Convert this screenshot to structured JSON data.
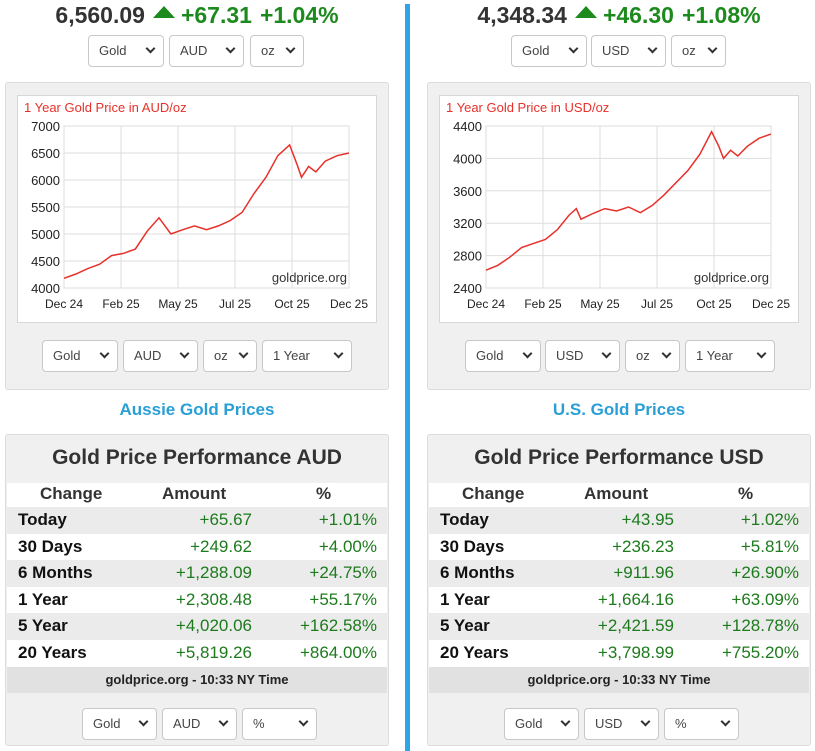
{
  "colors": {
    "up": "#1d8a1d",
    "accent": "#2fa4e7",
    "line": "#e8302a"
  },
  "panels": [
    {
      "id": "aud",
      "price": "6,560.09",
      "change": "+67.31",
      "change_pct": "+1.04%",
      "top_selects": {
        "metal": "Gold",
        "currency": "AUD",
        "unit": "oz"
      },
      "chart_selects": {
        "metal": "Gold",
        "currency": "AUD",
        "unit": "oz",
        "period": "1 Year"
      },
      "section_link": "Aussie Gold Prices",
      "perf_title": "Gold Price Performance AUD",
      "perf_headers": [
        "Change",
        "Amount",
        "%"
      ],
      "perf_rows": [
        {
          "label": "Today",
          "amount": "+65.67",
          "pct": "+1.01%"
        },
        {
          "label": "30 Days",
          "amount": "+249.62",
          "pct": "+4.00%"
        },
        {
          "label": "6 Months",
          "amount": "+1,288.09",
          "pct": "+24.75%"
        },
        {
          "label": "1 Year",
          "amount": "+2,308.48",
          "pct": "+55.17%"
        },
        {
          "label": "5 Year",
          "amount": "+4,020.06",
          "pct": "+162.58%"
        },
        {
          "label": "20 Years",
          "amount": "+5,819.26",
          "pct": "+864.00%"
        }
      ],
      "perf_footer": "goldprice.org - 10:33 NY Time",
      "bottom_selects": {
        "metal": "Gold",
        "currency": "AUD",
        "unit": "%"
      }
    },
    {
      "id": "usd",
      "price": "4,348.34",
      "change": "+46.30",
      "change_pct": "+1.08%",
      "top_selects": {
        "metal": "Gold",
        "currency": "USD",
        "unit": "oz"
      },
      "chart_selects": {
        "metal": "Gold",
        "currency": "USD",
        "unit": "oz",
        "period": "1 Year"
      },
      "section_link": "U.S. Gold Prices",
      "perf_title": "Gold Price Performance USD",
      "perf_headers": [
        "Change",
        "Amount",
        "%"
      ],
      "perf_rows": [
        {
          "label": "Today",
          "amount": "+43.95",
          "pct": "+1.02%"
        },
        {
          "label": "30 Days",
          "amount": "+236.23",
          "pct": "+5.81%"
        },
        {
          "label": "6 Months",
          "amount": "+911.96",
          "pct": "+26.90%"
        },
        {
          "label": "1 Year",
          "amount": "+1,664.16",
          "pct": "+63.09%"
        },
        {
          "label": "5 Year",
          "amount": "+2,421.59",
          "pct": "+128.78%"
        },
        {
          "label": "20 Years",
          "amount": "+3,798.99",
          "pct": "+755.20%"
        }
      ],
      "perf_footer": "goldprice.org - 10:33 NY Time",
      "bottom_selects": {
        "metal": "Gold",
        "currency": "USD",
        "unit": "%"
      }
    }
  ],
  "chart_data": [
    {
      "type": "line",
      "title": "1 Year Gold Price in AUD/oz",
      "watermark": "goldprice.org",
      "xlabel": "",
      "ylabel": "",
      "x_ticks": [
        "Dec 24",
        "Feb 25",
        "May 25",
        "Jul 25",
        "Oct 25",
        "Dec 25"
      ],
      "y_ticks": [
        4000,
        4500,
        5000,
        5500,
        6000,
        6500,
        7000
      ],
      "xlim": [
        0,
        12
      ],
      "ylim": [
        4000,
        7000
      ],
      "grid": true,
      "x": [
        0,
        0.5,
        1,
        1.5,
        2,
        2.5,
        3,
        3.5,
        4,
        4.5,
        5,
        5.5,
        6,
        6.5,
        7,
        7.5,
        8,
        8.5,
        9,
        9.5,
        9.8,
        10,
        10.3,
        10.6,
        11,
        11.5,
        12
      ],
      "series": [
        {
          "name": "Gold AUD",
          "values": [
            4180,
            4260,
            4360,
            4440,
            4600,
            4640,
            4720,
            5050,
            5300,
            5000,
            5080,
            5150,
            5080,
            5150,
            5250,
            5400,
            5750,
            6050,
            6450,
            6650,
            6300,
            6050,
            6250,
            6150,
            6350,
            6450,
            6500
          ]
        }
      ]
    },
    {
      "type": "line",
      "title": "1 Year Gold Price in USD/oz",
      "watermark": "goldprice.org",
      "xlabel": "",
      "ylabel": "",
      "x_ticks": [
        "Dec 24",
        "Feb 25",
        "May 25",
        "Jul 25",
        "Oct 25",
        "Dec 25"
      ],
      "y_ticks": [
        2400,
        2800,
        3200,
        3600,
        4000,
        4400
      ],
      "xlim": [
        0,
        12
      ],
      "ylim": [
        2400,
        4400
      ],
      "grid": true,
      "x": [
        0,
        0.5,
        1,
        1.5,
        2,
        2.5,
        3,
        3.5,
        3.8,
        4,
        4.5,
        5,
        5.5,
        6,
        6.5,
        7,
        7.5,
        8,
        8.5,
        9,
        9.5,
        9.8,
        10,
        10.3,
        10.6,
        11,
        11.5,
        12
      ],
      "series": [
        {
          "name": "Gold USD",
          "values": [
            2620,
            2680,
            2780,
            2900,
            2950,
            3000,
            3120,
            3300,
            3380,
            3250,
            3320,
            3380,
            3350,
            3400,
            3330,
            3420,
            3550,
            3700,
            3850,
            4050,
            4330,
            4150,
            4000,
            4100,
            4030,
            4150,
            4250,
            4300
          ]
        }
      ]
    }
  ]
}
